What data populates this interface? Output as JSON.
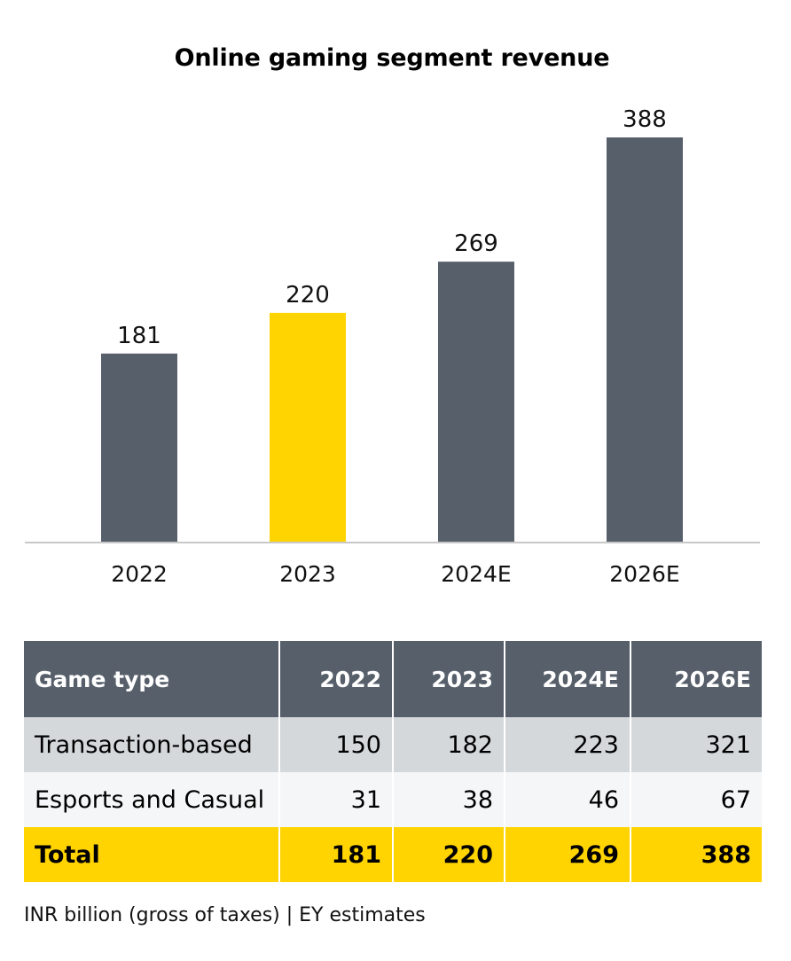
{
  "chart_data": {
    "type": "bar",
    "title": "Online gaming segment revenue",
    "categories": [
      "2022",
      "2023",
      "2024E",
      "2026E"
    ],
    "values": [
      181,
      220,
      269,
      388
    ],
    "ylim": [
      0,
      388
    ],
    "xlabel": "",
    "ylabel": "",
    "grid": false,
    "colors": {
      "default": "#575f6b",
      "highlight": "#ffd400"
    },
    "highlight_category": "2023"
  },
  "table": {
    "headers": [
      "Game type",
      "2022",
      "2023",
      "2024E",
      "2026E"
    ],
    "rows": [
      [
        "Transaction-based",
        "150",
        "182",
        "223",
        "321"
      ],
      [
        "Esports and Casual",
        "31",
        "38",
        "46",
        "67"
      ],
      [
        "Total",
        "181",
        "220",
        "269",
        "388"
      ]
    ],
    "colors": {
      "header": "#575f6b",
      "row_alt": "#d4d8db",
      "row_light": "#f5f6f7",
      "total": "#ffd400"
    }
  },
  "source_note": "INR billion (gross of taxes) | EY estimates"
}
